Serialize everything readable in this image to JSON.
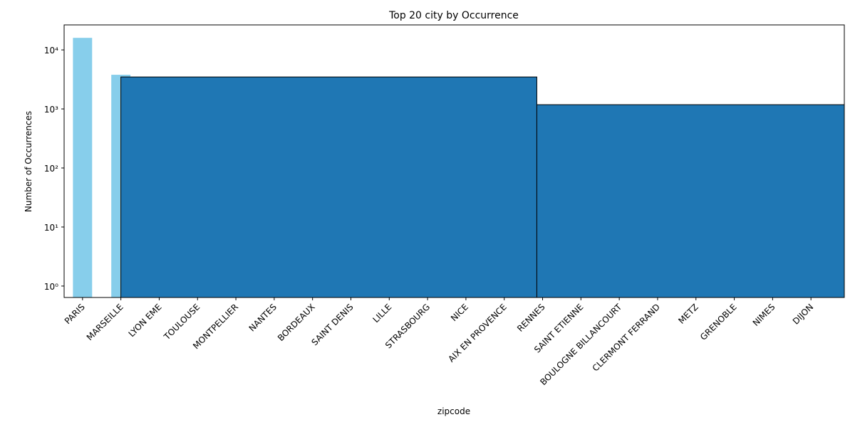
{
  "chart_data": {
    "type": "bar",
    "title": "Top 20 city by Occurrence",
    "x_label": "zipcode",
    "y_label": "Number of Occurrences",
    "categories": [
      "PARIS",
      "MARSEILLE",
      "LYON EME",
      "TOULOUSE",
      "MONTPELLIER",
      "NANTES",
      "BORDEAUX",
      "SAINT DENIS",
      "LILLE",
      "STRASBOURG",
      "NICE",
      "AIX EN PROVENCE",
      "RENNES",
      "SAINT ETIENNE",
      "BOULOGNE BILLANCOURT",
      "CLERMONT FERRAND",
      "METZ",
      "GRENOBLE",
      "NIMES",
      "DIJON"
    ],
    "values": [
      16000,
      3790,
      null,
      null,
      null,
      null,
      null,
      null,
      null,
      null,
      null,
      null,
      null,
      null,
      null,
      null,
      null,
      null,
      null,
      null
    ],
    "color": "#87ceeb",
    "histogram": {
      "bins": [
        1,
        11.85,
        20.7
      ],
      "counts": [
        3480,
        1180
      ],
      "color": "#1f77b4"
    },
    "xlim": [
      -0.48,
      19.87
    ],
    "ylim": [
      0.64,
      26500
    ],
    "log_y": true,
    "yticks": [
      {
        "value": 1,
        "label": "10⁰"
      },
      {
        "value": 10,
        "label": "10¹"
      },
      {
        "value": 100,
        "label": "10²"
      },
      {
        "value": 1000,
        "label": "10³"
      },
      {
        "value": 10000,
        "label": "10⁴"
      }
    ]
  }
}
